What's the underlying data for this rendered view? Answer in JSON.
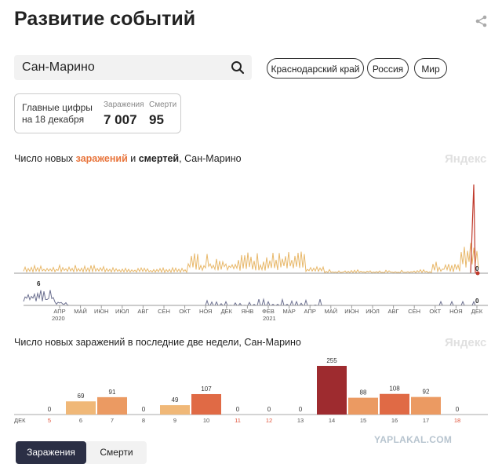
{
  "page": {
    "title": "Развитие событий"
  },
  "search": {
    "value": "Сан-Марино"
  },
  "regions": [
    {
      "label": "Краснодарский край"
    },
    {
      "label": "Россия"
    },
    {
      "label": "Мир"
    }
  ],
  "stats": {
    "caption_line1": "Главные цифры",
    "caption_line2": "на 18 декабря",
    "cases_label": "Заражения",
    "cases_value": "7 007",
    "deaths_label": "Смерти",
    "deaths_value": "95"
  },
  "daily_chart": {
    "title_prefix": "Число новых ",
    "title_cases": "заражений",
    "title_and": " и ",
    "title_deaths": "смертей",
    "title_suffix": ", Сан-Марино",
    "watermark": "Яндекс",
    "cases_last_label": "0",
    "deaths_peak_label": "6",
    "deaths_last_label": "0",
    "months": [
      "АПР",
      "МАЙ",
      "ИЮН",
      "ИЮЛ",
      "АВГ",
      "СЕН",
      "ОКТ",
      "НОЯ",
      "ДЕК",
      "ЯНВ",
      "ФЕВ",
      "МАР",
      "АПР",
      "МАЙ",
      "ИЮН",
      "ИЮЛ",
      "АВГ",
      "СЕН",
      "ОКТ",
      "НОЯ",
      "ДЕК"
    ],
    "year_2020": "2020",
    "year_2021": "2021",
    "colors": {
      "cases": "#e8b86a",
      "deaths": "#6b6f8f",
      "spike": "#c0392b"
    }
  },
  "chart_data": {
    "type": "bar",
    "title": "Число новых заражений в последние две недели, Сан-Марино",
    "month_label": "ДЕК",
    "categories": [
      "5",
      "6",
      "7",
      "8",
      "9",
      "10",
      "11",
      "12",
      "13",
      "14",
      "15",
      "16",
      "17",
      "18"
    ],
    "values": [
      0,
      69,
      91,
      0,
      49,
      107,
      0,
      0,
      0,
      255,
      88,
      108,
      92,
      0
    ],
    "weekend_days": [
      "5",
      "11",
      "12",
      "18"
    ],
    "ylim": [
      0,
      255
    ],
    "watermark": "Яндекс"
  },
  "tabs": [
    {
      "label": "Заражения",
      "active": true
    },
    {
      "label": "Смерти",
      "active": false
    }
  ],
  "site_watermark": "YAPLAKAL.COM"
}
